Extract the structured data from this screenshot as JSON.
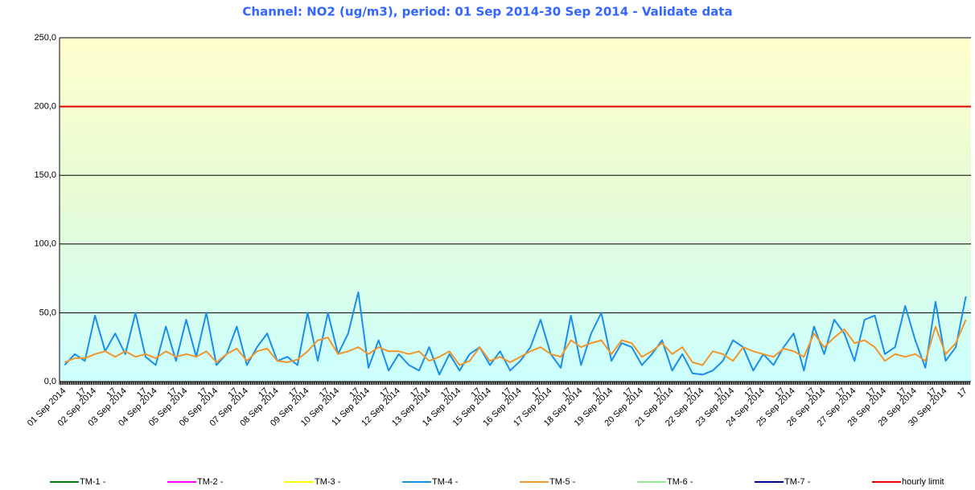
{
  "chart_data": {
    "type": "line",
    "title": "Channel: NO2 (ug/m3),  period: 01 Sep 2014-30 Sep 2014 - Validate data",
    "categories": [
      "01 Sep 2014",
      null,
      "17",
      "02 Sep 2014",
      null,
      "17",
      "03 Sep 2014",
      null,
      "17",
      "04 Sep 2014",
      null,
      "17",
      "05 Sep 2014",
      null,
      "17",
      "06 Sep 2014",
      null,
      "17",
      "07 Sep 2014",
      null,
      "17",
      "08 Sep 2014",
      null,
      "17",
      "09 Sep 2014",
      null,
      "17",
      "10 Sep 2014",
      null,
      "17",
      "11 Sep 2014",
      null,
      "17",
      "12 Sep 2014",
      null,
      "17",
      "13 Sep 2014",
      null,
      "17",
      "14 Sep 2014",
      null,
      "17",
      "15 Sep 2014",
      null,
      "17",
      "16 Sep 2014",
      null,
      "17",
      "17 Sep 2014",
      null,
      "17",
      "18 Sep 2014",
      null,
      "17",
      "19 Sep 2014",
      null,
      "17",
      "20 Sep 2014",
      null,
      "17",
      "21 Sep 2014",
      null,
      "17",
      "22 Sep 2014",
      null,
      "17",
      "23 Sep 2014",
      null,
      "17",
      "24 Sep 2014",
      null,
      "17",
      "25 Sep 2014",
      null,
      "17",
      "26 Sep 2014",
      null,
      "17",
      "27 Sep 2014",
      null,
      "17",
      "28 Sep 2014",
      null,
      "17",
      "29 Sep 2014",
      null,
      "17",
      "30 Sep 2014",
      null,
      "17"
    ],
    "series": [
      {
        "name": "TM-1 -",
        "color": "#008000",
        "values": [
          null,
          null,
          null,
          null,
          null,
          null,
          null,
          null,
          null,
          null,
          null,
          null,
          null,
          null,
          null,
          null,
          null,
          null,
          null,
          null,
          null,
          null,
          null,
          null,
          null,
          null,
          null,
          null,
          null,
          null,
          null,
          null,
          null,
          null,
          null,
          null,
          null,
          null,
          null,
          null,
          null,
          null,
          null,
          null,
          null,
          null,
          null,
          null,
          null,
          null,
          null,
          null,
          null,
          null,
          null,
          null,
          null,
          null,
          null,
          null,
          null,
          null,
          null,
          null,
          null,
          null,
          null,
          null,
          null,
          null,
          null,
          null,
          null,
          null,
          null,
          null,
          null,
          null,
          null,
          null,
          null,
          null,
          null,
          null,
          null,
          null,
          null,
          null,
          null,
          null
        ]
      },
      {
        "name": "TM-2 -",
        "color": "#ff00ff",
        "values": [
          null,
          null,
          null,
          null,
          null,
          null,
          null,
          null,
          null,
          null,
          null,
          null,
          null,
          null,
          null,
          null,
          null,
          null,
          null,
          null,
          null,
          null,
          null,
          null,
          null,
          null,
          null,
          null,
          null,
          null,
          null,
          null,
          null,
          null,
          null,
          null,
          null,
          null,
          null,
          null,
          null,
          null,
          null,
          null,
          null,
          null,
          null,
          null,
          null,
          null,
          null,
          null,
          null,
          null,
          null,
          null,
          null,
          null,
          null,
          null,
          null,
          null,
          null,
          null,
          null,
          null,
          null,
          null,
          null,
          null,
          null,
          null,
          null,
          null,
          null,
          null,
          null,
          null,
          null,
          null,
          null,
          null,
          null,
          null,
          null,
          null,
          null,
          null,
          null,
          null
        ]
      },
      {
        "name": "TM-3 -",
        "color": "#ffff00",
        "values": [
          null,
          null,
          null,
          null,
          null,
          null,
          null,
          null,
          null,
          null,
          null,
          null,
          null,
          null,
          null,
          null,
          null,
          null,
          null,
          null,
          null,
          null,
          null,
          null,
          null,
          null,
          null,
          null,
          null,
          null,
          null,
          null,
          null,
          null,
          null,
          null,
          null,
          null,
          null,
          null,
          null,
          null,
          null,
          null,
          null,
          null,
          null,
          null,
          null,
          null,
          null,
          null,
          null,
          null,
          null,
          null,
          null,
          null,
          null,
          null,
          null,
          null,
          null,
          null,
          null,
          null,
          null,
          null,
          null,
          null,
          null,
          null,
          null,
          null,
          null,
          null,
          null,
          null,
          null,
          null,
          null,
          null,
          null,
          null,
          null,
          null,
          null,
          null,
          null,
          null
        ]
      },
      {
        "name": "TM-4 -",
        "color": "#1a8fe8",
        "values": [
          12,
          20,
          15,
          48,
          22,
          35,
          20,
          50,
          18,
          12,
          40,
          15,
          45,
          18,
          50,
          12,
          20,
          40,
          12,
          25,
          35,
          15,
          18,
          12,
          50,
          15,
          50,
          20,
          35,
          65,
          10,
          30,
          8,
          20,
          12,
          8,
          25,
          5,
          20,
          8,
          20,
          25,
          12,
          22,
          8,
          15,
          25,
          45,
          20,
          10,
          48,
          12,
          35,
          50,
          15,
          28,
          25,
          12,
          20,
          30,
          8,
          20,
          6,
          5,
          8,
          15,
          30,
          25,
          8,
          20,
          12,
          25,
          35,
          8,
          40,
          20,
          45,
          35,
          15,
          45,
          48,
          20,
          25,
          55,
          30,
          10,
          58,
          15,
          25,
          62
        ]
      },
      {
        "name": "TM-5 -",
        "color": "#f0962d",
        "values": [
          14,
          17,
          17,
          20,
          22,
          18,
          22,
          18,
          20,
          17,
          22,
          18,
          20,
          18,
          22,
          14,
          20,
          24,
          15,
          22,
          24,
          15,
          14,
          16,
          22,
          30,
          32,
          20,
          22,
          25,
          20,
          25,
          22,
          22,
          20,
          22,
          15,
          18,
          22,
          12,
          15,
          25,
          15,
          18,
          14,
          18,
          22,
          25,
          20,
          18,
          30,
          25,
          28,
          30,
          20,
          30,
          28,
          18,
          22,
          28,
          20,
          25,
          14,
          12,
          22,
          20,
          15,
          25,
          22,
          20,
          18,
          24,
          22,
          18,
          35,
          25,
          32,
          38,
          28,
          30,
          25,
          15,
          20,
          18,
          20,
          15,
          40,
          20,
          28,
          45
        ]
      },
      {
        "name": "TM-6 -",
        "color": "#90ee90",
        "values": [
          null,
          null,
          null,
          null,
          null,
          null,
          null,
          null,
          null,
          null,
          null,
          null,
          null,
          null,
          null,
          null,
          null,
          null,
          null,
          null,
          null,
          null,
          null,
          null,
          null,
          null,
          null,
          null,
          null,
          null,
          null,
          null,
          null,
          null,
          null,
          null,
          null,
          null,
          null,
          null,
          null,
          null,
          null,
          null,
          null,
          null,
          null,
          null,
          null,
          null,
          null,
          null,
          null,
          null,
          null,
          null,
          null,
          null,
          null,
          null,
          null,
          null,
          null,
          null,
          null,
          null,
          null,
          null,
          null,
          null,
          null,
          null,
          null,
          null,
          null,
          null,
          null,
          null,
          null,
          null,
          null,
          null,
          null,
          null,
          null,
          null,
          null,
          null,
          null,
          null
        ]
      },
      {
        "name": "TM-7 -",
        "color": "#00008b",
        "values": [
          null,
          null,
          null,
          null,
          null,
          null,
          null,
          null,
          null,
          null,
          null,
          null,
          null,
          null,
          null,
          null,
          null,
          null,
          null,
          null,
          null,
          null,
          null,
          null,
          null,
          null,
          null,
          null,
          null,
          null,
          null,
          null,
          null,
          null,
          null,
          null,
          null,
          null,
          null,
          null,
          null,
          null,
          null,
          null,
          null,
          null,
          null,
          null,
          null,
          null,
          null,
          null,
          null,
          null,
          null,
          null,
          null,
          null,
          null,
          null,
          null,
          null,
          null,
          null,
          null,
          null,
          null,
          null,
          null,
          null,
          null,
          null,
          null,
          null,
          null,
          null,
          null,
          null,
          null,
          null,
          null,
          null,
          null,
          null,
          null,
          null,
          null,
          null,
          null,
          null
        ]
      },
      {
        "name": "hourly limit",
        "color": "#e00000",
        "y": 200
      }
    ],
    "ylim": [
      0,
      250
    ],
    "yticks": [
      {
        "value": 0,
        "label": "0,0"
      },
      {
        "value": 50,
        "label": "50,0"
      },
      {
        "value": 100,
        "label": "100,0"
      },
      {
        "value": 150,
        "label": "150,0"
      },
      {
        "value": 200,
        "label": "200,0"
      },
      {
        "value": 250,
        "label": "250,0"
      }
    ],
    "grid": true
  }
}
